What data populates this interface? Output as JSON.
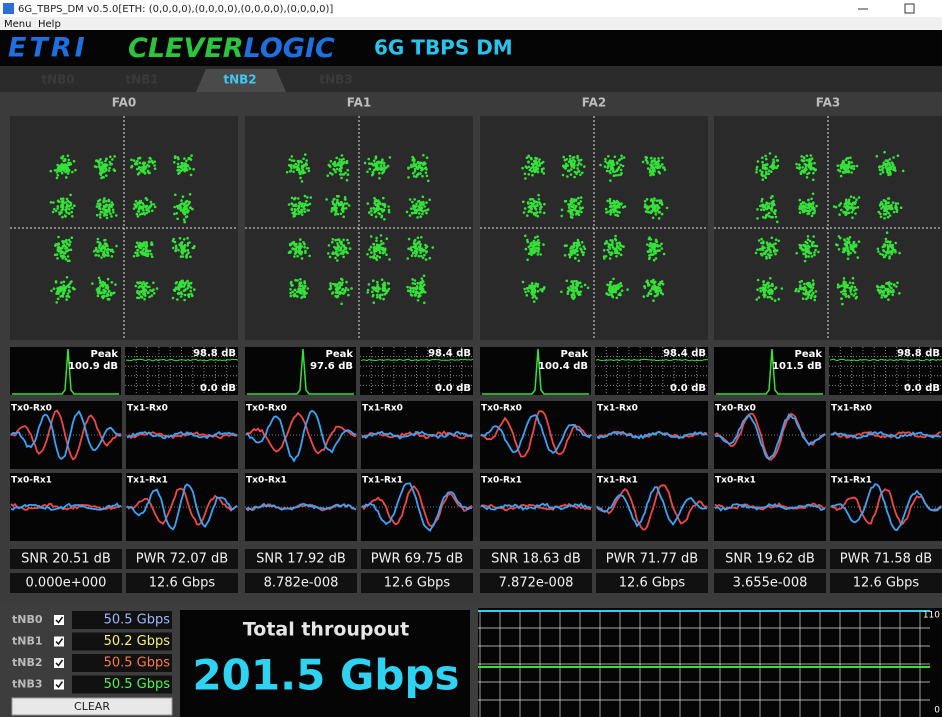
{
  "window": {
    "title": "6G_TBPS_DM v0.5.0[ETH: (0,0,0,0),(0,0,0,0),(0,0,0,0),(0,0,0,0)]",
    "menu": [
      "Menu",
      "Help"
    ]
  },
  "header": {
    "etri": "ETRI",
    "clever": "CLEVER",
    "logic": "LOGIC",
    "product": "6G TBPS DM"
  },
  "tabs": [
    "tNB0",
    "tNB1",
    "tNB2",
    "tNB3"
  ],
  "panels": [
    {
      "name": "FA0",
      "peak_label": "Peak",
      "peak": "100.9 dB",
      "spec_max": "98.8 dB",
      "spec_min": "0.0 dB",
      "channels": [
        "Tx0-Rx0",
        "Tx1-Rx0",
        "Tx0-Rx1",
        "Tx1-Rx1"
      ],
      "snr": "SNR 20.51 dB",
      "pwr": "PWR 72.07 dB",
      "ber": "0.000e+000",
      "rate": "12.6 Gbps"
    },
    {
      "name": "FA1",
      "peak_label": "Peak",
      "peak": "97.6 dB",
      "spec_max": "98.4 dB",
      "spec_min": "0.0 dB",
      "channels": [
        "Tx0-Rx0",
        "Tx1-Rx0",
        "Tx0-Rx1",
        "Tx1-Rx1"
      ],
      "snr": "SNR 17.92 dB",
      "pwr": "PWR 69.75 dB",
      "ber": "8.782e-008",
      "rate": "12.6 Gbps"
    },
    {
      "name": "FA2",
      "peak_label": "Peak",
      "peak": "100.4 dB",
      "spec_max": "98.4 dB",
      "spec_min": "0.0 dB",
      "channels": [
        "Tx0-Rx0",
        "Tx1-Rx0",
        "Tx0-Rx1",
        "Tx1-Rx1"
      ],
      "snr": "SNR 18.63 dB",
      "pwr": "PWR 71.77 dB",
      "ber": "7.872e-008",
      "rate": "12.6 Gbps"
    },
    {
      "name": "FA3",
      "peak_label": "Peak",
      "peak": "101.5 dB",
      "spec_max": "98.8 dB",
      "spec_min": "0.0 dB",
      "channels": [
        "Tx0-Rx0",
        "Tx1-Rx0",
        "Tx0-Rx1",
        "Tx1-Rx1"
      ],
      "snr": "SNR 19.62 dB",
      "pwr": "PWR 71.58 dB",
      "ber": "3.655e-008",
      "rate": "12.6 Gbps"
    }
  ],
  "throughput": {
    "rows": [
      {
        "name": "tNB0",
        "value": "50.5 Gbps"
      },
      {
        "name": "tNB1",
        "value": "50.2 Gbps"
      },
      {
        "name": "tNB2",
        "value": "50.5 Gbps"
      },
      {
        "name": "tNB3",
        "value": "50.5 Gbps"
      }
    ],
    "clear": "CLEAR",
    "title": "Total throupout",
    "total": "201.5 Gbps",
    "axis_max": "110",
    "axis_min": "0"
  }
}
